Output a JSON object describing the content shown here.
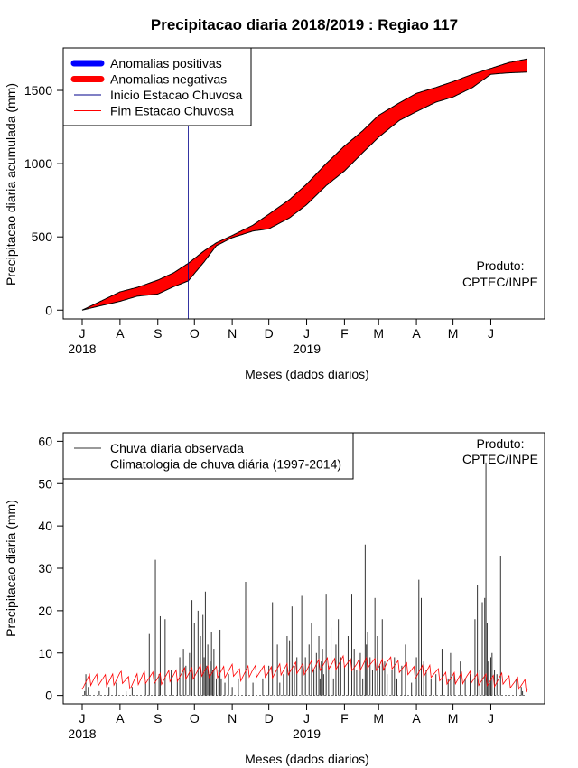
{
  "chart_data": [
    {
      "type": "area",
      "title": "Precipitacao diaria 2018/2019 : Regiao 117",
      "xlabel": "Meses (dados diarios)",
      "ylabel": "Precipitacao diaria acumulada (mm)",
      "xlim_days": [
        0,
        365
      ],
      "ylim": [
        -60,
        1790
      ],
      "yticks": [
        0,
        500,
        1000,
        1500
      ],
      "month_ticks": {
        "labels": [
          "J",
          "A",
          "S",
          "O",
          "N",
          "D",
          "J",
          "F",
          "M",
          "A",
          "M",
          "J"
        ],
        "days": [
          0,
          31,
          62,
          92,
          123,
          153,
          184,
          215,
          243,
          274,
          304,
          335
        ]
      },
      "year_labels": [
        "2018",
        "2019"
      ],
      "legend": {
        "position": "top-left",
        "entries": [
          {
            "label": "Anomalias positivas",
            "color": "#0000ff",
            "style": "thick"
          },
          {
            "label": "Anomalias negativas",
            "color": "#ff0000",
            "style": "thick"
          },
          {
            "label": "Inicio Estacao Chuvosa",
            "color": "#00008b",
            "style": "thin"
          },
          {
            "label": "Fim Estacao Chuvosa",
            "color": "#ff0000",
            "style": "thin"
          }
        ]
      },
      "annotation": [
        "Produto:",
        "CPTEC/INPE"
      ],
      "season_start_day": 87,
      "climatology_cumulative": {
        "days": [
          0,
          15,
          31,
          45,
          62,
          75,
          87,
          100,
          110,
          123,
          140,
          153,
          170,
          184,
          200,
          215,
          230,
          243,
          260,
          274,
          290,
          304,
          320,
          335,
          350,
          365
        ],
        "values": [
          0,
          60,
          125,
          155,
          205,
          255,
          320,
          405,
          460,
          510,
          580,
          655,
          755,
          860,
          1000,
          1120,
          1225,
          1330,
          1415,
          1480,
          1520,
          1560,
          1610,
          1650,
          1690,
          1715
        ]
      },
      "observed_cumulative": {
        "days": [
          0,
          15,
          31,
          45,
          62,
          75,
          87,
          100,
          110,
          123,
          140,
          153,
          170,
          184,
          200,
          215,
          230,
          243,
          260,
          274,
          290,
          304,
          320,
          335,
          350,
          365
        ],
        "values": [
          0,
          30,
          60,
          95,
          110,
          160,
          200,
          330,
          440,
          495,
          540,
          555,
          630,
          720,
          850,
          950,
          1075,
          1180,
          1295,
          1355,
          1420,
          1455,
          1520,
          1610,
          1620,
          1625
        ]
      }
    },
    {
      "type": "bar",
      "xlabel": "Meses (dados diarios)",
      "ylabel": "Precipitacao diaria (mm)",
      "xlim_days": [
        0,
        365
      ],
      "ylim": [
        -2,
        62
      ],
      "yticks": [
        0,
        10,
        20,
        30,
        40,
        50,
        60
      ],
      "month_ticks": {
        "labels": [
          "J",
          "A",
          "S",
          "O",
          "N",
          "D",
          "J",
          "F",
          "M",
          "A",
          "M",
          "J"
        ],
        "days": [
          0,
          31,
          62,
          92,
          123,
          153,
          184,
          215,
          243,
          274,
          304,
          335
        ]
      },
      "year_labels": [
        "2018",
        "2019"
      ],
      "legend": {
        "position": "top-left",
        "entries": [
          {
            "label": "Chuva diaria observada",
            "color": "#333333",
            "style": "thin"
          },
          {
            "label": "Climatologia de chuva diária (1997-2014)",
            "color": "#ff0000",
            "style": "thin"
          }
        ]
      },
      "annotation": [
        "Produto:",
        "CPTEC/INPE"
      ],
      "series": [
        {
          "name": "Chuva diaria observada",
          "days": [
            2,
            3,
            5,
            14,
            22,
            28,
            36,
            41,
            52,
            55,
            60,
            63,
            64,
            68,
            73,
            78,
            80,
            83,
            85,
            88,
            90,
            92,
            95,
            97,
            99,
            100,
            101,
            102,
            103,
            104,
            105,
            106,
            107,
            108,
            110,
            112,
            113,
            114,
            117,
            120,
            123,
            128,
            134,
            140,
            148,
            153,
            156,
            160,
            162,
            165,
            168,
            170,
            172,
            174,
            176,
            180,
            183,
            186,
            188,
            190,
            192,
            194,
            195,
            196,
            197,
            198,
            200,
            202,
            204,
            206,
            208,
            210,
            212,
            215,
            218,
            221,
            223,
            225,
            228,
            230,
            232,
            233,
            234,
            236,
            238,
            240,
            242,
            244,
            246,
            248,
            250,
            254,
            256,
            258,
            262,
            265,
            270,
            274,
            276,
            278,
            280,
            282,
            286,
            290,
            295,
            300,
            302,
            305,
            310,
            314,
            318,
            322,
            324,
            326,
            328,
            330,
            331,
            332,
            333,
            334,
            335,
            336,
            338,
            340,
            343,
            356,
            360,
            361
          ],
          "values": [
            1,
            5,
            2,
            1,
            2,
            3,
            1,
            2,
            3,
            14.5,
            32,
            5,
            18.7,
            18,
            6,
            4,
            9,
            11,
            7,
            10,
            22.5,
            17,
            20,
            14,
            19,
            9,
            24.5,
            7,
            12,
            5,
            8,
            15,
            6,
            11,
            4,
            6,
            15.5,
            4,
            3,
            5,
            2,
            4,
            26.8,
            3,
            4,
            7,
            22,
            12,
            3,
            5,
            14,
            13,
            21,
            7,
            9,
            23.5,
            9,
            12,
            17,
            6,
            10,
            14,
            4,
            8,
            11,
            5,
            24,
            7,
            16,
            4,
            12,
            18,
            9,
            7,
            14,
            24,
            11,
            6,
            10,
            4,
            35.6,
            12,
            15,
            9,
            6,
            23,
            14,
            7,
            18,
            8,
            5,
            6,
            9,
            4,
            7,
            12,
            3,
            9,
            27.3,
            23,
            8,
            6,
            4,
            5,
            11,
            4,
            10,
            5,
            8,
            4,
            5,
            18,
            26,
            6,
            22,
            23,
            55,
            17,
            8,
            3,
            9,
            10,
            6,
            5,
            33,
            4,
            2,
            1
          ]
        },
        {
          "name": "Climatologia de chuva diária (1997-2014)",
          "days": [
            0,
            10,
            20,
            31,
            40,
            50,
            62,
            70,
            80,
            92,
            100,
            110,
            123,
            130,
            140,
            153,
            160,
            170,
            184,
            195,
            205,
            215,
            225,
            235,
            243,
            250,
            260,
            274,
            285,
            295,
            304,
            315,
            325,
            335,
            345,
            355,
            365
          ],
          "values": [
            3,
            4,
            3.5,
            4.5,
            3,
            4.5,
            4,
            4.5,
            5,
            5.5,
            6,
            5.5,
            6,
            5,
            6,
            5.5,
            6,
            6.5,
            6.5,
            7.5,
            7.5,
            8,
            7,
            8,
            7,
            8,
            7,
            5.5,
            6,
            4.5,
            4,
            4.5,
            4,
            3.5,
            4,
            3,
            2.5
          ]
        }
      ]
    }
  ]
}
